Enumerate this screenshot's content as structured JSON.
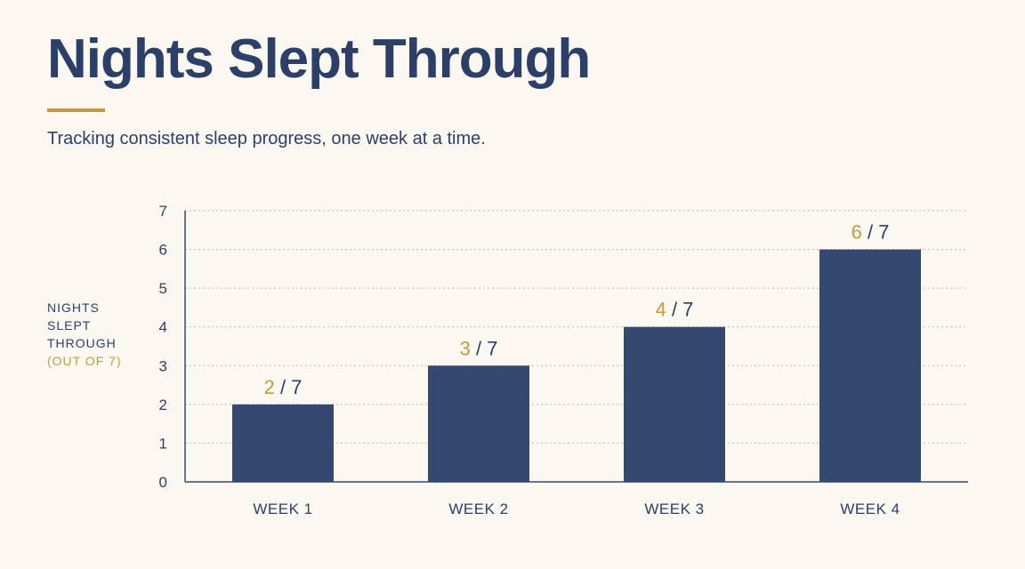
{
  "header": {
    "title": "Nights Slept Through",
    "subtitle": "Tracking consistent sleep progress, one week at a time."
  },
  "y_axis_title": {
    "lines": [
      "NIGHTS",
      "SLEPT",
      "THROUGH"
    ],
    "note": "(OUT OF 7)"
  },
  "colors": {
    "bar": "#34496f",
    "accent": "#c69a3c",
    "text": "#2b3f68",
    "grid": "#b9b9b9",
    "background": "#fbf8f2"
  },
  "chart_data": {
    "type": "bar",
    "title": "Nights Slept Through",
    "subtitle": "Tracking consistent sleep progress, one week at a time.",
    "categories": [
      "WEEK 1",
      "WEEK 2",
      "WEEK 3",
      "WEEK 4"
    ],
    "values": [
      2,
      3,
      4,
      6
    ],
    "total": 7,
    "data_labels": [
      "2 / 7",
      "3 / 7",
      "4 / 7",
      "6 / 7"
    ],
    "ylabel": "NIGHTS SLEPT THROUGH (OUT OF 7)",
    "xlabel": "",
    "ylim": [
      0,
      7
    ],
    "yticks": [
      0,
      1,
      2,
      3,
      4,
      5,
      6,
      7
    ],
    "grid": "horizontal dotted"
  }
}
